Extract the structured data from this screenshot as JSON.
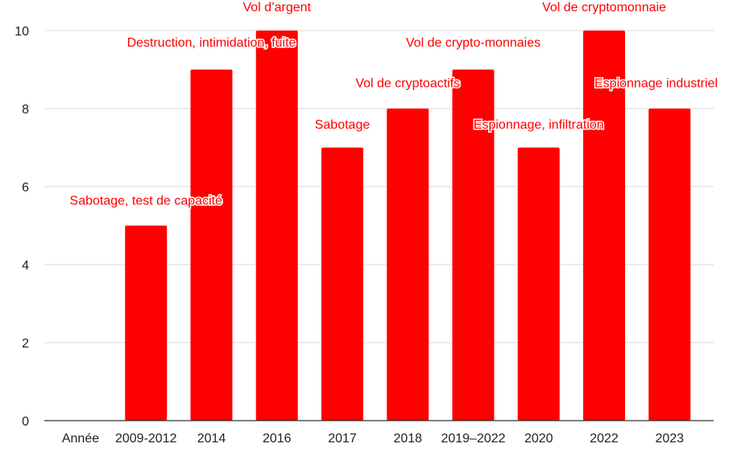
{
  "colors": {
    "bar": "#ff0000",
    "label": "#ff0000",
    "grid": "#d9d9d9",
    "text": "#222222"
  },
  "chart_data": {
    "type": "bar",
    "title": "",
    "xlabel": "",
    "ylabel": "",
    "ylim": [
      0,
      10
    ],
    "yticks": [
      0,
      2,
      4,
      6,
      8,
      10
    ],
    "grid": true,
    "legend": "none",
    "categories": [
      "Année",
      "2009-2012",
      "2014",
      "2016",
      "2017",
      "2018",
      "2019–2022",
      "2020",
      "2022",
      "2023"
    ],
    "values": [
      0,
      5,
      9,
      10,
      7,
      8,
      9,
      7,
      10,
      8
    ],
    "labels": [
      "",
      "Sabotage, test de capacité",
      "Destruction, intimidation, fuite",
      "Vol d’argent",
      "Sabotage",
      "Vol de cryptoactifs",
      "Vol de crypto-monnaies",
      "Espionnage, infiltration",
      "Vol de cryptomonnaie",
      "Espionnage industriel"
    ]
  }
}
